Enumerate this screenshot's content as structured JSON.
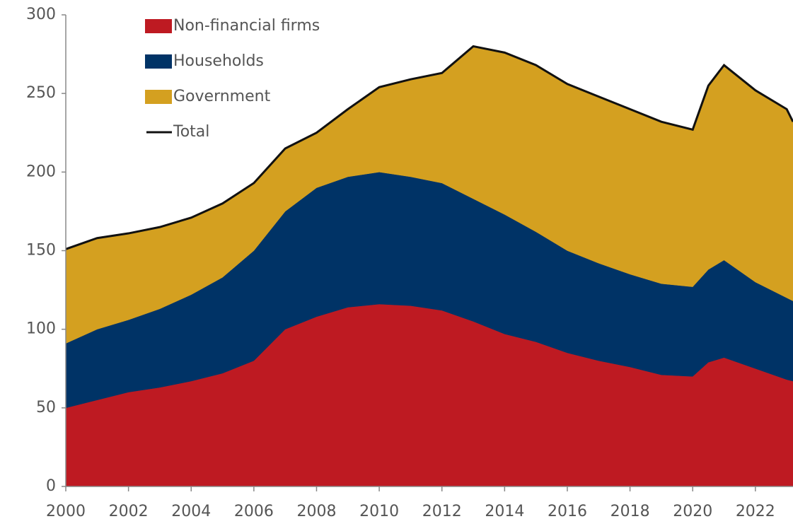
{
  "chart_data": {
    "type": "stacked_area",
    "x": [
      2000,
      2001,
      2002,
      2003,
      2004,
      2005,
      2006,
      2007,
      2008,
      2009,
      2010,
      2011,
      2012,
      2013,
      2014,
      2015,
      2016,
      2017,
      2018,
      2019,
      2020,
      2020.5,
      2021,
      2022,
      2023,
      2023.2
    ],
    "series": [
      {
        "name": "Non-financial firms",
        "color": "#be1a22",
        "values": [
          50,
          55,
          60,
          63,
          67,
          72,
          80,
          100,
          108,
          114,
          116,
          115,
          112,
          105,
          97,
          92,
          85,
          80,
          76,
          71,
          70,
          79,
          82,
          75,
          68,
          67
        ]
      },
      {
        "name": "Households",
        "color": "#003366",
        "values": [
          41,
          45,
          46,
          50,
          55,
          61,
          70,
          75,
          82,
          83,
          84,
          82,
          81,
          78,
          76,
          70,
          65,
          62,
          59,
          58,
          57,
          59,
          62,
          55,
          52,
          51
        ]
      },
      {
        "name": "Government",
        "color": "#d4a020",
        "values": [
          60,
          58,
          55,
          52,
          49,
          47,
          43,
          40,
          35,
          43,
          54,
          62,
          70,
          97,
          103,
          106,
          106,
          106,
          105,
          103,
          100,
          117,
          124,
          122,
          120,
          114
        ]
      },
      {
        "name": "Total",
        "color": "#111111",
        "line": true,
        "values": [
          151,
          158,
          161,
          165,
          171,
          180,
          193,
          215,
          225,
          240,
          254,
          259,
          263,
          280,
          276,
          268,
          256,
          248,
          240,
          232,
          227,
          255,
          268,
          252,
          240,
          232
        ]
      }
    ],
    "xlim": [
      2000,
      2023.2
    ],
    "xticks": [
      2000,
      2002,
      2004,
      2006,
      2008,
      2010,
      2012,
      2014,
      2016,
      2018,
      2020,
      2022
    ],
    "ylim": [
      0,
      300
    ],
    "yticks": [
      0,
      50,
      100,
      150,
      200,
      250,
      300
    ],
    "legend": "upper left"
  }
}
